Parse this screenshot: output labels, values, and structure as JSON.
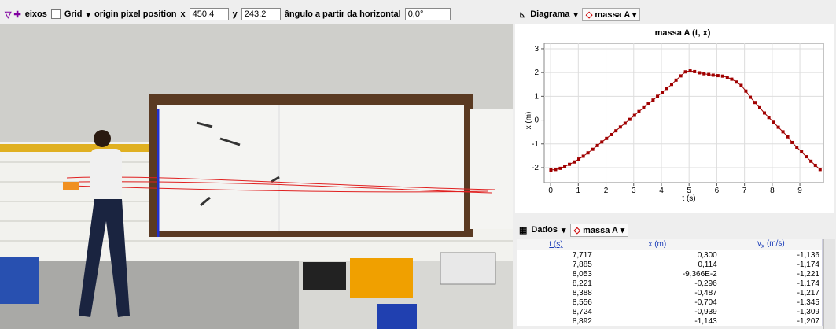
{
  "toolbar": {
    "axes": "eixos",
    "grid": "Grid",
    "origin_label": "origin pixel position",
    "x_label": "x",
    "x_value": "450,4",
    "y_label": "y",
    "y_value": "243,2",
    "angle_label": "ângulo a partir da horizontal",
    "angle_value": "0,0°"
  },
  "plot_panel": {
    "view": "Diagrama",
    "track": "massa A"
  },
  "chart_data": {
    "type": "line",
    "title": "massa A (t, x)",
    "xlabel": "t (s)",
    "ylabel": "x (m)",
    "color": "#a00000",
    "grid": true,
    "x": [
      0.01,
      0.18,
      0.35,
      0.51,
      0.68,
      0.85,
      1.02,
      1.18,
      1.35,
      1.52,
      1.69,
      1.85,
      2.02,
      2.19,
      2.36,
      2.52,
      2.69,
      2.86,
      3.03,
      3.19,
      3.36,
      3.53,
      3.7,
      3.86,
      4.03,
      4.2,
      4.37,
      4.53,
      4.7,
      4.87,
      5.04,
      5.2,
      5.37,
      5.54,
      5.71,
      5.87,
      6.04,
      6.21,
      6.38,
      6.54,
      6.71,
      6.88,
      7.05,
      7.21,
      7.38,
      7.55,
      7.72,
      7.88,
      8.05,
      8.22,
      8.39,
      8.56,
      8.72,
      8.89,
      9.06,
      9.23,
      9.4,
      9.56,
      9.73
    ],
    "values": [
      -2.1,
      -2.08,
      -2.03,
      -1.95,
      -1.86,
      -1.76,
      -1.64,
      -1.52,
      -1.38,
      -1.23,
      -1.07,
      -0.92,
      -0.77,
      -0.61,
      -0.45,
      -0.29,
      -0.13,
      0.03,
      0.2,
      0.36,
      0.52,
      0.68,
      0.84,
      1.0,
      1.16,
      1.33,
      1.5,
      1.68,
      1.86,
      2.03,
      2.07,
      2.04,
      1.99,
      1.95,
      1.92,
      1.89,
      1.87,
      1.85,
      1.8,
      1.72,
      1.6,
      1.46,
      1.22,
      0.96,
      0.74,
      0.52,
      0.3,
      0.11,
      -0.09,
      -0.3,
      -0.49,
      -0.7,
      -0.94,
      -1.14,
      -1.34,
      -1.54,
      -1.73,
      -1.9,
      -2.08
    ],
    "xlim": [
      -0.23,
      9.85
    ],
    "xticks": [
      0,
      1,
      2,
      3,
      4,
      5,
      6,
      7,
      8,
      9
    ],
    "ylim": [
      -2.63,
      3.23
    ],
    "yticks": [
      -2,
      -1,
      0,
      1,
      2,
      3
    ]
  },
  "data_panel": {
    "view": "Dados",
    "track": "massa A"
  },
  "table": {
    "columns": [
      {
        "text": "t (s)"
      },
      {
        "text": "x (m)"
      },
      {
        "symbol": "v",
        "subscript": "x",
        "unit": "(m/s)"
      }
    ],
    "rows": [
      [
        "7,717",
        "0,300",
        "-1,136"
      ],
      [
        "7,885",
        "0,114",
        "-1,174"
      ],
      [
        "8,053",
        "-9,366E-2",
        "-1,221"
      ],
      [
        "8,221",
        "-0,296",
        "-1,174"
      ],
      [
        "8,388",
        "-0,487",
        "-1,217"
      ],
      [
        "8,556",
        "-0,704",
        "-1,345"
      ],
      [
        "8,724",
        "-0,939",
        "-1,309"
      ],
      [
        "8,892",
        "-1,143",
        "-1,207"
      ]
    ]
  }
}
